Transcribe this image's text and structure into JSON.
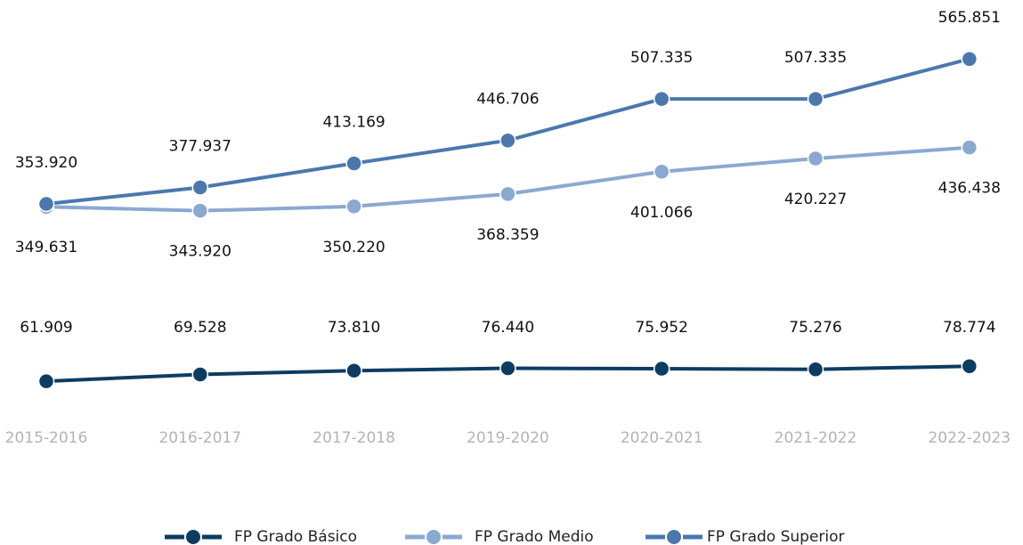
{
  "chart_data": {
    "type": "line",
    "categories": [
      "2015-2016",
      "2016-2017",
      "2017-2018",
      "2019-2020",
      "2020-2021",
      "2021-2022",
      "2022-2023"
    ],
    "series": [
      {
        "name": "FP Grado Básico",
        "color": "#0d3c61",
        "axis": "y2",
        "values": [
          61909,
          69528,
          73810,
          76440,
          75952,
          75276,
          78774
        ],
        "value_labels": [
          "61.909",
          "69.528",
          "73.810",
          "76.440",
          "75.952",
          "75.276",
          "78.774"
        ]
      },
      {
        "name": "FP Grado Medio",
        "color": "#8aa9d1",
        "values": [
          349631,
          343920,
          350220,
          368359,
          401066,
          420227,
          436438
        ],
        "value_labels": [
          "349.631",
          "343.920",
          "350.220",
          "368.359",
          "401.066",
          "420.227",
          "436.438"
        ]
      },
      {
        "name": "FP Grado Superior",
        "color": "#4a78ad",
        "values": [
          353920,
          377937,
          413169,
          446706,
          507335,
          507335,
          565851
        ],
        "value_labels": [
          "353.920",
          "377.937",
          "413.169",
          "446.706",
          "507.335",
          "507.335",
          "565.851"
        ]
      }
    ],
    "ylim": [
      40000,
      600000
    ],
    "y2lim": [
      20000,
      450000
    ]
  }
}
